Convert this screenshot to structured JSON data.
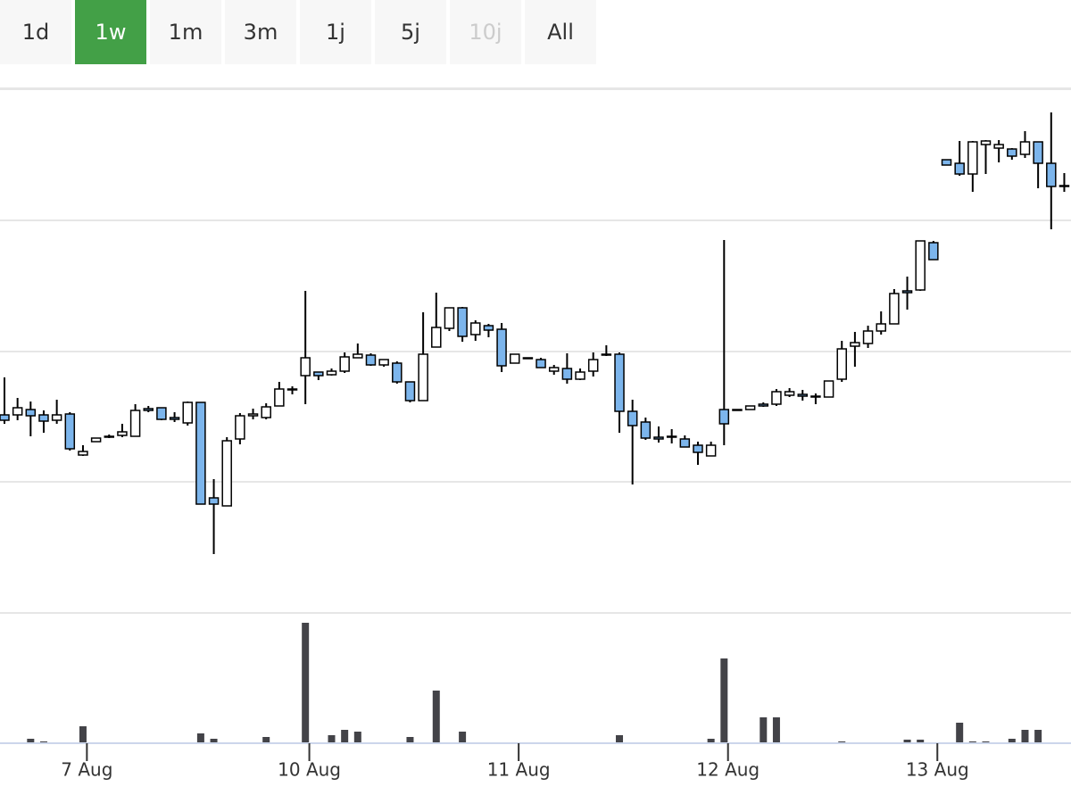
{
  "range_selector": {
    "buttons": [
      "1d",
      "1w",
      "1m",
      "3m",
      "1j",
      "5j",
      "10j",
      "All"
    ],
    "selected": 1,
    "disabled": [
      6
    ],
    "selected_color": "#43a047"
  },
  "chart_data": {
    "type": "candlestick",
    "open": [
      222,
      222,
      228,
      222,
      216,
      223,
      177,
      192,
      197,
      199,
      198,
      229,
      230,
      219,
      213,
      236,
      129,
      120,
      195,
      221,
      219,
      232,
      250,
      266,
      270,
      267,
      271,
      286,
      289,
      278,
      280,
      259,
      238,
      298,
      319,
      342,
      312,
      322,
      318,
      280,
      286,
      284,
      271,
      274,
      262,
      271,
      290,
      290,
      226,
      214,
      197,
      197,
      195,
      188,
      176,
      228,
      227,
      228,
      234,
      234,
      244,
      245,
      242,
      242,
      262,
      299,
      302,
      316,
      324,
      361,
      362,
      415,
      508,
      504,
      492,
      525,
      521,
      520,
      514,
      528,
      504,
      479
    ],
    "high": [
      264,
      241,
      237,
      227,
      239,
      225,
      188,
      196,
      200,
      212,
      234,
      232,
      230,
      225,
      237,
      236,
      150,
      197,
      224,
      229,
      235,
      259,
      254,
      361,
      270,
      274,
      292,
      302,
      291,
      284,
      282,
      259,
      337,
      359,
      342,
      343,
      328,
      324,
      325,
      290,
      286,
      286,
      278,
      291,
      274,
      292,
      300,
      292,
      239,
      219,
      209,
      206,
      199,
      192,
      192,
      418,
      228,
      232,
      236,
      251,
      252,
      250,
      246,
      260,
      305,
      315,
      322,
      338,
      363,
      377,
      417,
      417,
      508,
      529,
      529,
      530,
      530,
      521,
      540,
      528,
      561,
      493
    ],
    "low": [
      212,
      216,
      198,
      202,
      212,
      182,
      176,
      192,
      196,
      197,
      198,
      225,
      216,
      214,
      210,
      122,
      66,
      120,
      189,
      217,
      217,
      232,
      245,
      234,
      261,
      266,
      269,
      286,
      277,
      276,
      257,
      236,
      238,
      298,
      316,
      304,
      305,
      309,
      270,
      280,
      285,
      275,
      267,
      257,
      261,
      265,
      288,
      202,
      144,
      194,
      191,
      190,
      186,
      166,
      176,
      188,
      227,
      228,
      231,
      232,
      242,
      238,
      234,
      242,
      259,
      276,
      297,
      312,
      324,
      340,
      361,
      396,
      502,
      490,
      472,
      492,
      505,
      508,
      510,
      476,
      430,
      472
    ],
    "close": [
      216,
      230,
      221,
      215,
      222,
      184,
      181,
      196,
      198,
      203,
      227,
      227,
      217,
      217,
      236,
      122,
      122,
      193,
      221,
      223,
      231,
      251,
      251,
      286,
      266,
      271,
      287,
      290,
      278,
      284,
      259,
      238,
      290,
      320,
      342,
      310,
      325,
      317,
      277,
      290,
      285,
      275,
      275,
      262,
      270,
      284,
      289,
      226,
      210,
      196,
      195,
      198,
      186,
      180,
      188,
      212,
      228,
      232,
      232,
      248,
      248,
      243,
      243,
      260,
      296,
      303,
      316,
      324,
      358,
      359,
      417,
      396,
      502,
      492,
      528,
      529,
      525,
      512,
      528,
      504,
      478,
      478
    ],
    "volume": [
      0,
      0,
      5,
      2,
      0,
      0,
      19,
      0,
      0,
      0,
      0,
      0,
      0,
      0,
      0,
      11,
      5,
      0,
      0,
      0,
      7,
      0,
      0,
      135,
      0,
      9,
      15,
      13,
      0,
      0,
      0,
      7,
      0,
      59,
      0,
      13,
      0,
      0,
      0,
      0,
      0,
      0,
      0,
      0,
      0,
      0,
      0,
      9,
      0,
      0,
      0,
      0,
      0,
      0,
      5,
      95,
      0,
      0,
      29,
      29,
      0,
      0,
      0,
      0,
      2,
      0,
      0,
      0,
      0,
      4,
      4,
      0,
      0,
      23,
      2,
      2,
      0,
      5,
      15,
      15,
      0,
      0
    ],
    "up_color": "#ffffff",
    "down_color": "#7cb5ec",
    "volume_color": "#434348",
    "ylim": [
      0,
      587
    ],
    "yticks": [
      0,
      147,
      293,
      440,
      587
    ],
    "grid": true,
    "volume_ylim": [
      0,
      146
    ],
    "xticks": [
      {
        "value": 6.3,
        "label": "7 Aug"
      },
      {
        "value": 23.3,
        "label": "10 Aug"
      },
      {
        "value": 39.3,
        "label": "11 Aug"
      },
      {
        "value": 55.3,
        "label": "12 Aug"
      },
      {
        "value": 71.3,
        "label": "13 Aug"
      }
    ]
  }
}
